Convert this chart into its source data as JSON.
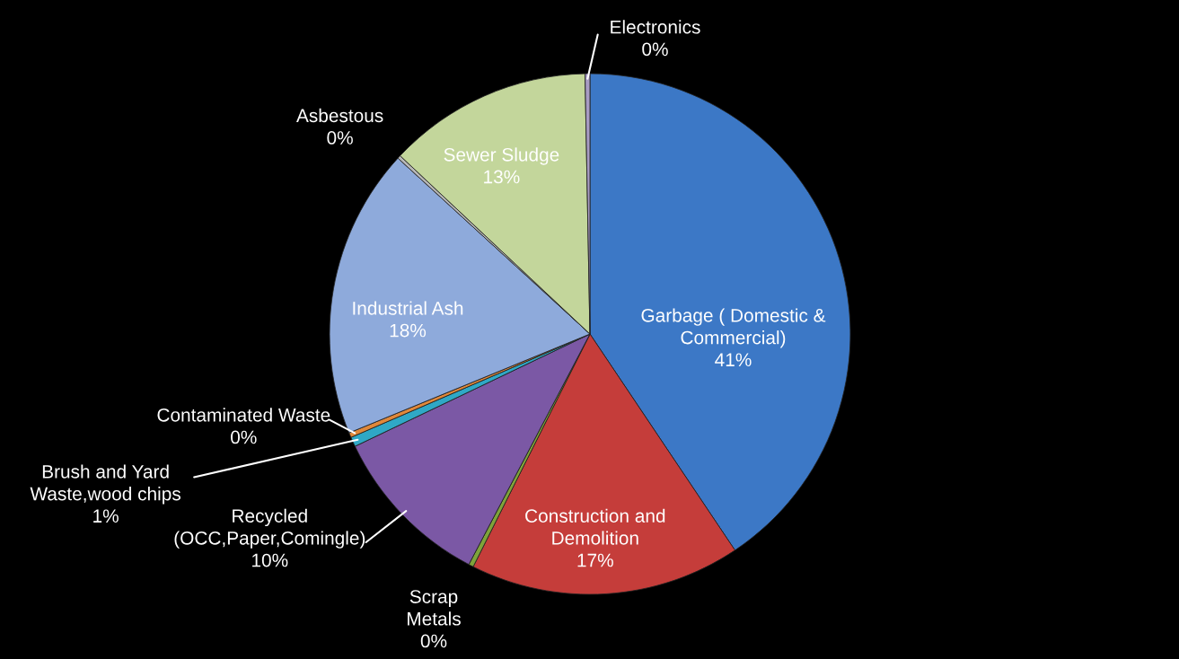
{
  "chart_data": {
    "type": "pie",
    "categories": [
      "Garbage ( Domestic &\nCommercial)",
      "Construction and\nDemolition",
      "Scrap\nMetals",
      "Recycled\n(OCC,Paper,Comingle)",
      "Brush and Yard\nWaste,wood chips",
      "Contaminated Waste",
      "Industrial Ash",
      "Asbestous",
      "Sewer Sludge",
      "Electronics"
    ],
    "values": [
      40.6,
      16.8,
      0.3,
      10.2,
      0.6,
      0.3,
      18.0,
      0.2,
      12.7,
      0.3
    ],
    "value_labels": [
      "41%",
      "17%",
      "0%",
      "10%",
      "1%",
      "0%",
      "18%",
      "0%",
      "13%",
      "0%"
    ],
    "colors": [
      "#3c78c6",
      "#c53d3a",
      "#7fa33a",
      "#7b58a5",
      "#2fa8c6",
      "#e0883a",
      "#8eaadb",
      "#b8b8b8",
      "#c3d69b",
      "#a89cc4"
    ]
  }
}
